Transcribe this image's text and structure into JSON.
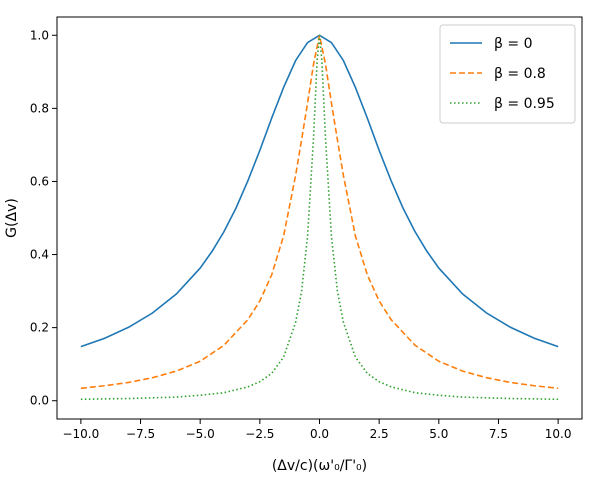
{
  "chart_data": {
    "type": "line",
    "xlabel": "(Δv/c)(ω'₀/Γ'₀)",
    "ylabel": "G(Δv)",
    "xlim": [
      -11,
      11
    ],
    "ylim": [
      -0.05,
      1.05
    ],
    "xticks": [
      -10,
      -7.5,
      -5,
      -2.5,
      0,
      2.5,
      5,
      7.5,
      10
    ],
    "xtick_labels": [
      "−10.0",
      "−7.5",
      "−5.0",
      "−2.5",
      "0.0",
      "2.5",
      "5.0",
      "7.5",
      "10.0"
    ],
    "yticks": [
      0,
      0.2,
      0.4,
      0.6,
      0.8,
      1.0
    ],
    "ytick_labels": [
      "0.0",
      "0.2",
      "0.4",
      "0.6",
      "0.8",
      "1.0"
    ],
    "grid": false,
    "legend_position": "top-right",
    "series": [
      {
        "name": "β = 0",
        "color": "#1f77b4",
        "style": "solid",
        "x": [
          -10,
          -9,
          -8,
          -7,
          -6,
          -5,
          -4.5,
          -4,
          -3.5,
          -3,
          -2.5,
          -2,
          -1.5,
          -1,
          -0.5,
          0,
          0.5,
          1,
          1.5,
          2,
          2.5,
          3,
          3.5,
          4,
          4.5,
          5,
          6,
          7,
          8,
          9,
          10
        ],
        "y": [
          0.148,
          0.171,
          0.201,
          0.24,
          0.292,
          0.363,
          0.409,
          0.463,
          0.527,
          0.602,
          0.685,
          0.774,
          0.858,
          0.931,
          0.98,
          1.0,
          0.98,
          0.931,
          0.858,
          0.774,
          0.685,
          0.602,
          0.527,
          0.463,
          0.409,
          0.363,
          0.292,
          0.24,
          0.201,
          0.171,
          0.148
        ]
      },
      {
        "name": "β = 0.8",
        "color": "#ff7f0e",
        "style": "dashed",
        "x": [
          -10,
          -9,
          -8,
          -7,
          -6,
          -5,
          -4,
          -3,
          -2.5,
          -2,
          -1.5,
          -1,
          -0.75,
          -0.5,
          -0.25,
          0,
          0.25,
          0.5,
          0.75,
          1,
          1.5,
          2,
          2.5,
          3,
          4,
          5,
          6,
          7,
          8,
          9,
          10
        ],
        "y": [
          0.034,
          0.041,
          0.05,
          0.063,
          0.081,
          0.108,
          0.152,
          0.222,
          0.273,
          0.345,
          0.452,
          0.617,
          0.714,
          0.815,
          0.921,
          1.0,
          0.921,
          0.815,
          0.714,
          0.617,
          0.452,
          0.345,
          0.273,
          0.222,
          0.152,
          0.108,
          0.081,
          0.063,
          0.05,
          0.041,
          0.034
        ]
      },
      {
        "name": "β = 0.95",
        "color": "#2ca02c",
        "style": "dotted",
        "x": [
          -10,
          -9,
          -8,
          -7,
          -6,
          -5,
          -4,
          -3,
          -2.5,
          -2,
          -1.5,
          -1,
          -0.75,
          -0.5,
          -0.25,
          -0.1,
          0,
          0.1,
          0.25,
          0.5,
          0.75,
          1,
          1.5,
          2,
          2.5,
          3,
          4,
          5,
          6,
          7,
          8,
          9,
          10
        ],
        "y": [
          0.004,
          0.005,
          0.006,
          0.008,
          0.01,
          0.015,
          0.022,
          0.038,
          0.052,
          0.075,
          0.12,
          0.215,
          0.3,
          0.45,
          0.72,
          0.93,
          1.0,
          0.93,
          0.72,
          0.45,
          0.3,
          0.215,
          0.12,
          0.075,
          0.052,
          0.038,
          0.022,
          0.015,
          0.01,
          0.008,
          0.006,
          0.005,
          0.004
        ]
      }
    ]
  }
}
